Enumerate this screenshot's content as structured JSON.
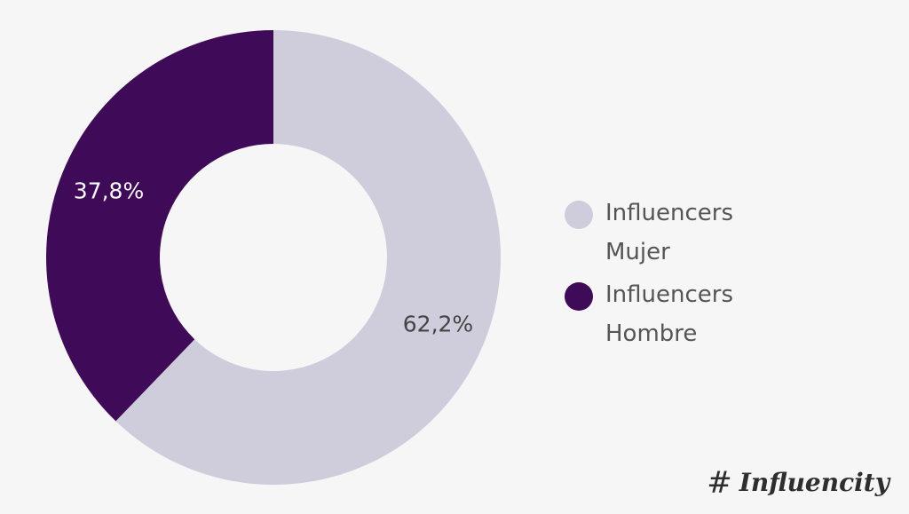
{
  "chart_data": {
    "type": "pie",
    "title": "",
    "donut": true,
    "slices": [
      {
        "name": "Influencers Mujer",
        "value": 62.2,
        "label": "62,2%",
        "color": "#cfccdc",
        "label_color": "#444444"
      },
      {
        "name": "Influencers Hombre",
        "value": 37.8,
        "label": "37,8%",
        "color": "#3f0a57",
        "label_color": "#ffffff"
      }
    ],
    "legend_placement": "right"
  },
  "legend": {
    "items": [
      {
        "label": "Influencers Mujer",
        "color": "#cfccdc"
      },
      {
        "label": "Influencers Hombre",
        "color": "#3f0a57"
      }
    ]
  },
  "brand": {
    "logo_text": "Influencity"
  }
}
